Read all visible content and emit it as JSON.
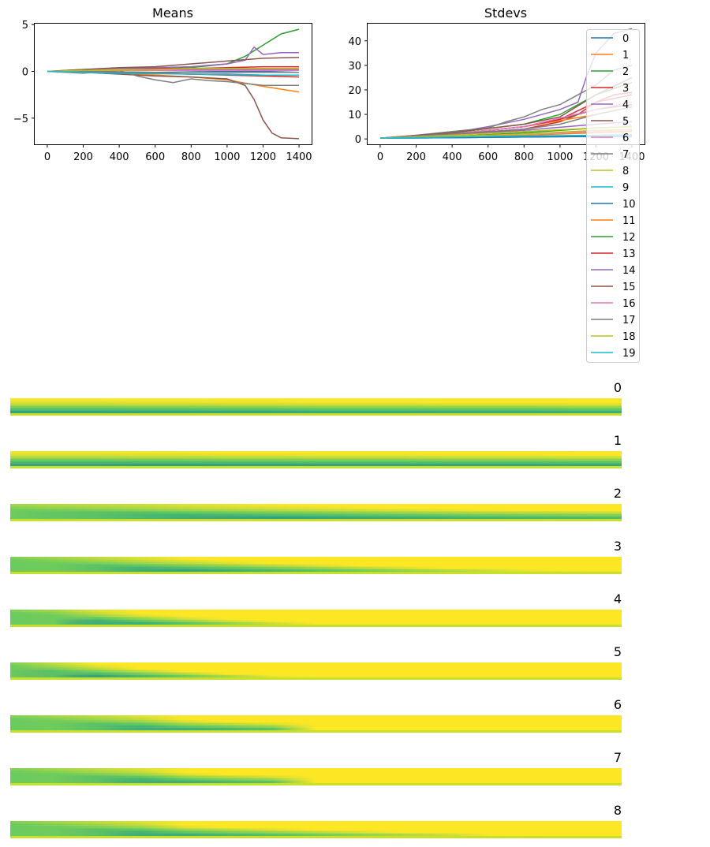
{
  "chart_data": [
    {
      "type": "line",
      "title": "Means",
      "xlim": [
        -70,
        1470
      ],
      "ylim": [
        -7.8,
        5.1
      ],
      "xticks": [
        0,
        200,
        400,
        600,
        800,
        1000,
        1200,
        1400
      ],
      "yticks": [
        5,
        0,
        -5
      ],
      "ytick_labels": [
        "5",
        "0",
        "−5"
      ],
      "grid": false,
      "series": [
        {
          "name": "0",
          "x": [
            0,
            200,
            400,
            600,
            800,
            1000,
            1200,
            1400
          ],
          "y": [
            0,
            0.05,
            0.1,
            0.1,
            0.05,
            0,
            0,
            -0.1
          ]
        },
        {
          "name": "1",
          "x": [
            0,
            200,
            400,
            600,
            800,
            1000,
            1200,
            1400
          ],
          "y": [
            0,
            0,
            -0.2,
            -0.4,
            -0.6,
            -0.9,
            -1.6,
            -2.2
          ]
        },
        {
          "name": "2",
          "x": [
            0,
            200,
            400,
            600,
            800,
            1000,
            1100,
            1200,
            1300,
            1400
          ],
          "y": [
            0,
            0.2,
            0.3,
            0.3,
            0.4,
            0.8,
            1.6,
            2.8,
            4.0,
            4.5
          ]
        },
        {
          "name": "3",
          "x": [
            0,
            200,
            400,
            600,
            800,
            1000,
            1200,
            1400
          ],
          "y": [
            0,
            0.1,
            0.2,
            0.3,
            0.3,
            0.4,
            0.5,
            0.5
          ]
        },
        {
          "name": "4",
          "x": [
            0,
            200,
            400,
            600,
            800,
            1000,
            1100,
            1150,
            1200,
            1300,
            1400
          ],
          "y": [
            0,
            0.1,
            0.3,
            0.4,
            0.5,
            0.8,
            1.2,
            2.6,
            1.8,
            2.0,
            2.0
          ]
        },
        {
          "name": "5",
          "x": [
            0,
            200,
            400,
            600,
            800,
            1000,
            1100,
            1150,
            1200,
            1250,
            1300,
            1400
          ],
          "y": [
            0,
            -0.1,
            -0.3,
            -0.5,
            -0.6,
            -0.8,
            -1.5,
            -3.0,
            -5.2,
            -6.6,
            -7.1,
            -7.2
          ]
        },
        {
          "name": "6",
          "x": [
            0,
            200,
            400,
            600,
            800,
            1000,
            1200,
            1400
          ],
          "y": [
            0,
            0.05,
            0.1,
            0.15,
            0.2,
            0.25,
            0.3,
            0.3
          ]
        },
        {
          "name": "7",
          "x": [
            0,
            200,
            400,
            500,
            600,
            700,
            800,
            900,
            1000,
            1100,
            1200,
            1300,
            1400
          ],
          "y": [
            0,
            -0.2,
            0.1,
            -0.5,
            -0.9,
            -1.2,
            -0.8,
            -1.0,
            -1.1,
            -1.3,
            -1.5,
            -1.5,
            -1.5
          ]
        },
        {
          "name": "8",
          "x": [
            0,
            200,
            400,
            600,
            800,
            1000,
            1200,
            1400
          ],
          "y": [
            0,
            0.1,
            0.2,
            0.2,
            0.3,
            0.3,
            0.3,
            0.3
          ]
        },
        {
          "name": "9",
          "x": [
            0,
            200,
            400,
            600,
            800,
            1000,
            1200,
            1400
          ],
          "y": [
            0,
            0,
            -0.05,
            -0.1,
            -0.1,
            -0.1,
            -0.1,
            -0.1
          ]
        },
        {
          "name": "10",
          "x": [
            0,
            200,
            400,
            600,
            800,
            1000,
            1200,
            1400
          ],
          "y": [
            0,
            0,
            -0.1,
            -0.2,
            -0.3,
            -0.3,
            -0.4,
            -0.4
          ]
        },
        {
          "name": "11",
          "x": [
            0,
            200,
            400,
            600,
            800,
            1000,
            1200,
            1400
          ],
          "y": [
            0,
            0.05,
            0.1,
            0.1,
            0.1,
            0.1,
            0.1,
            0.1
          ]
        },
        {
          "name": "12",
          "x": [
            0,
            200,
            400,
            600,
            800,
            1000,
            1200,
            1400
          ],
          "y": [
            0,
            0.05,
            0.1,
            0.1,
            0.2,
            0.2,
            0.2,
            0.2
          ]
        },
        {
          "name": "13",
          "x": [
            0,
            200,
            400,
            600,
            800,
            1000,
            1200,
            1400
          ],
          "y": [
            0,
            -0.05,
            -0.1,
            -0.2,
            -0.3,
            -0.4,
            -0.5,
            -0.6
          ]
        },
        {
          "name": "14",
          "x": [
            0,
            200,
            400,
            600,
            800,
            1000,
            1200,
            1400
          ],
          "y": [
            0,
            0.05,
            0.1,
            0.1,
            0.2,
            0.2,
            0.2,
            0.2
          ]
        },
        {
          "name": "15",
          "x": [
            0,
            200,
            400,
            600,
            800,
            1000,
            1200,
            1400
          ],
          "y": [
            0,
            0.2,
            0.4,
            0.5,
            0.8,
            1.1,
            1.4,
            1.5
          ]
        },
        {
          "name": "16",
          "x": [
            0,
            200,
            400,
            600,
            800,
            1000,
            1200,
            1400
          ],
          "y": [
            0,
            0.05,
            0.1,
            0.1,
            0.1,
            0.1,
            0.1,
            0.1
          ]
        },
        {
          "name": "17",
          "x": [
            0,
            200,
            400,
            600,
            800,
            1000,
            1200,
            1400
          ],
          "y": [
            0,
            0,
            -0.05,
            -0.1,
            -0.1,
            -0.1,
            -0.1,
            -0.1
          ]
        },
        {
          "name": "18",
          "x": [
            0,
            200,
            400,
            600,
            800,
            1000,
            1200,
            1400
          ],
          "y": [
            0,
            0.1,
            0.15,
            0.2,
            0.3,
            0.3,
            0.3,
            0.3
          ]
        },
        {
          "name": "19",
          "x": [
            0,
            200,
            400,
            600,
            800,
            1000,
            1200,
            1400
          ],
          "y": [
            0,
            -0.1,
            -0.2,
            -0.25,
            -0.3,
            -0.35,
            -0.4,
            -0.4
          ]
        }
      ]
    },
    {
      "type": "line",
      "title": "Stdevs",
      "xlim": [
        -70,
        1470
      ],
      "ylim": [
        -2.2,
        47
      ],
      "xticks": [
        0,
        200,
        400,
        600,
        800,
        1000,
        1200,
        1400
      ],
      "yticks": [
        0,
        10,
        20,
        30,
        40
      ],
      "grid": false,
      "legend": {
        "placement": "right, overflowing below the plot",
        "entries": [
          "0",
          "1",
          "2",
          "3",
          "4",
          "5",
          "6",
          "7",
          "8",
          "9",
          "10",
          "11",
          "12",
          "13",
          "14",
          "15",
          "16",
          "17",
          "18",
          "19"
        ]
      },
      "series": [
        {
          "name": "0",
          "x": [
            0,
            400,
            800,
            1200,
            1400
          ],
          "y": [
            0.3,
            0.5,
            0.8,
            1.0,
            1.0
          ]
        },
        {
          "name": "1",
          "x": [
            0,
            400,
            800,
            1200,
            1400
          ],
          "y": [
            0.3,
            0.8,
            1.5,
            2.5,
            3.0
          ]
        },
        {
          "name": "2",
          "x": [
            0,
            400,
            800,
            1200,
            1400
          ],
          "y": [
            0.3,
            1.0,
            2.5,
            4.5,
            5.0
          ]
        },
        {
          "name": "3",
          "x": [
            0,
            400,
            800,
            1000,
            1100,
            1200,
            1300,
            1400
          ],
          "y": [
            0.3,
            1.5,
            4.0,
            7.0,
            10.0,
            15.0,
            18.0,
            19.0
          ]
        },
        {
          "name": "4",
          "x": [
            0,
            400,
            600,
            800,
            1000,
            1100,
            1150,
            1200,
            1300,
            1400
          ],
          "y": [
            0.3,
            2.5,
            5.0,
            8.0,
            12.0,
            15.0,
            26.0,
            35.0,
            43.0,
            45.0
          ]
        },
        {
          "name": "5",
          "x": [
            0,
            400,
            800,
            1000,
            1200,
            1400
          ],
          "y": [
            0.3,
            2.0,
            5.0,
            8.0,
            12.0,
            14.0
          ]
        },
        {
          "name": "6",
          "x": [
            0,
            400,
            800,
            1200,
            1400
          ],
          "y": [
            0.3,
            1.0,
            2.0,
            3.0,
            3.5
          ]
        },
        {
          "name": "7",
          "x": [
            0,
            200,
            400,
            600,
            700,
            800,
            900,
            1000,
            1100,
            1200,
            1300,
            1400
          ],
          "y": [
            0.3,
            1.5,
            3.0,
            4.5,
            7.0,
            9.0,
            12.0,
            14.0,
            18.0,
            22.0,
            28.0,
            30.0
          ]
        },
        {
          "name": "8",
          "x": [
            0,
            400,
            800,
            1200,
            1400
          ],
          "y": [
            0.3,
            1.0,
            2.0,
            3.5,
            4.0
          ]
        },
        {
          "name": "9",
          "x": [
            0,
            400,
            800,
            1200,
            1400
          ],
          "y": [
            0.3,
            0.5,
            0.8,
            1.2,
            1.5
          ]
        },
        {
          "name": "10",
          "x": [
            0,
            400,
            800,
            1200,
            1400
          ],
          "y": [
            0.3,
            0.5,
            0.8,
            1.0,
            1.2
          ]
        },
        {
          "name": "11",
          "x": [
            0,
            400,
            800,
            1200,
            1400
          ],
          "y": [
            0.3,
            2.0,
            5.0,
            10.0,
            13.0
          ]
        },
        {
          "name": "12",
          "x": [
            0,
            400,
            800,
            1000,
            1200,
            1400
          ],
          "y": [
            0.3,
            2.5,
            6.0,
            10.0,
            18.0,
            23.0
          ]
        },
        {
          "name": "13",
          "x": [
            0,
            400,
            800,
            1000,
            1200,
            1400
          ],
          "y": [
            0.3,
            2.0,
            5.0,
            8.0,
            15.0,
            18.0
          ]
        },
        {
          "name": "14",
          "x": [
            0,
            400,
            800,
            1200,
            1400
          ],
          "y": [
            0.3,
            1.5,
            3.5,
            6.0,
            7.0
          ]
        },
        {
          "name": "15",
          "x": [
            0,
            400,
            800,
            1000,
            1200,
            1400
          ],
          "y": [
            0.3,
            2.5,
            6.0,
            9.0,
            18.0,
            25.0
          ]
        },
        {
          "name": "16",
          "x": [
            0,
            400,
            800,
            1200,
            1400
          ],
          "y": [
            0.3,
            2.0,
            5.0,
            12.0,
            15.0
          ]
        },
        {
          "name": "17",
          "x": [
            0,
            400,
            800,
            1000,
            1200,
            1400
          ],
          "y": [
            0.3,
            2.0,
            4.0,
            6.0,
            10.0,
            13.0
          ]
        },
        {
          "name": "18",
          "x": [
            0,
            400,
            800,
            1200,
            1400
          ],
          "y": [
            0.3,
            1.5,
            3.0,
            4.5,
            5.0
          ]
        },
        {
          "name": "19",
          "x": [
            0,
            400,
            800,
            1200,
            1400
          ],
          "y": [
            0.3,
            0.8,
            1.2,
            1.5,
            1.8
          ]
        }
      ]
    },
    {
      "type": "heatmap",
      "colormap": "viridis",
      "panels": [
        {
          "title": "0",
          "profile": [
            0.3,
            0.3,
            0.3,
            0.31,
            0.31,
            0.32,
            0.32,
            0.33,
            0.33,
            0.33,
            0.34,
            0.34,
            0.34,
            0.35,
            0.35
          ]
        },
        {
          "title": "1",
          "profile": [
            0.28,
            0.28,
            0.28,
            0.29,
            0.29,
            0.3,
            0.3,
            0.31,
            0.31,
            0.31,
            0.32,
            0.32,
            0.32,
            0.33,
            0.33
          ]
        },
        {
          "title": "2",
          "profile": [
            0.15,
            0.18,
            0.2,
            0.22,
            0.25,
            0.27,
            0.29,
            0.31,
            0.33,
            0.35,
            0.37,
            0.39,
            0.4,
            0.41,
            0.42
          ]
        },
        {
          "title": "3",
          "profile": [
            0.1,
            0.15,
            0.2,
            0.25,
            0.3,
            0.35,
            0.4,
            0.45,
            0.5,
            0.55,
            0.6,
            0.65,
            0.7,
            0.72,
            0.75
          ]
        },
        {
          "title": "4",
          "profile": [
            0.1,
            0.15,
            0.25,
            0.35,
            0.45,
            0.55,
            0.65,
            0.8,
            0.85,
            0.88,
            0.9,
            0.93,
            0.95,
            0.97,
            1.0
          ]
        },
        {
          "title": "5",
          "profile": [
            0.1,
            0.2,
            0.3,
            0.4,
            0.5,
            0.6,
            0.7,
            0.85,
            0.88,
            0.9,
            0.92,
            0.95,
            0.97,
            0.98,
            1.0
          ]
        },
        {
          "title": "6",
          "profile": [
            0.1,
            0.15,
            0.2,
            0.25,
            0.35,
            0.4,
            0.45,
            0.85,
            0.88,
            0.9,
            0.92,
            0.95,
            0.97,
            0.98,
            1.0
          ]
        },
        {
          "title": "7",
          "profile": [
            0.1,
            0.15,
            0.2,
            0.25,
            0.35,
            0.4,
            0.45,
            0.9,
            0.92,
            0.93,
            0.94,
            0.95,
            0.97,
            0.98,
            1.0
          ]
        },
        {
          "title": "8",
          "profile": [
            0.1,
            0.15,
            0.2,
            0.25,
            0.35,
            0.4,
            0.45,
            0.5,
            0.55,
            0.6,
            0.65,
            0.75,
            0.85,
            0.95,
            1.0
          ]
        }
      ]
    }
  ]
}
